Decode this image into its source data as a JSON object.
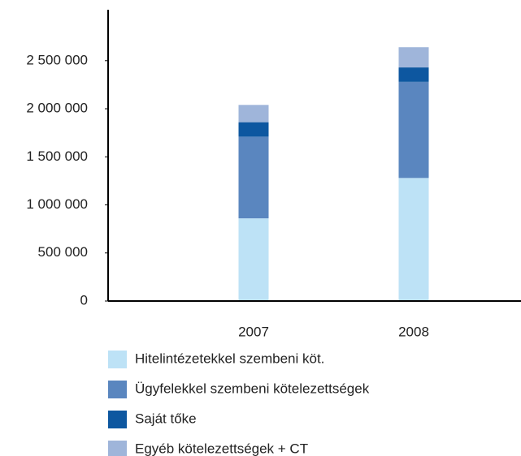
{
  "chart_data": {
    "type": "stacked_bar",
    "categories": [
      "2007",
      "2008"
    ],
    "series": [
      {
        "name": "Hitelintézetekkel szembeni köt.",
        "color": "#bde2f6",
        "values": [
          860000,
          1280000
        ]
      },
      {
        "name": "Ügyfelekkel szembeni kötelezettségek",
        "color": "#5a86bf",
        "values": [
          850000,
          1000000
        ]
      },
      {
        "name": "Saját tőke",
        "color": "#0d57a0",
        "values": [
          150000,
          150000
        ]
      },
      {
        "name": "Egyéb kötelezettségek + CT",
        "color": "#9fb5da",
        "values": [
          180000,
          210000
        ]
      }
    ],
    "ylim": [
      0,
      3030000
    ],
    "yticks": [
      0,
      {
        "value": 500000,
        "label": "500 000"
      },
      {
        "value": 1000000,
        "label": "1 000 000"
      },
      {
        "value": 1500000,
        "label": "1 500 000"
      },
      {
        "value": 2000000,
        "label": "2 000 000"
      },
      {
        "value": 2500000,
        "label": "2 500 000"
      }
    ]
  }
}
